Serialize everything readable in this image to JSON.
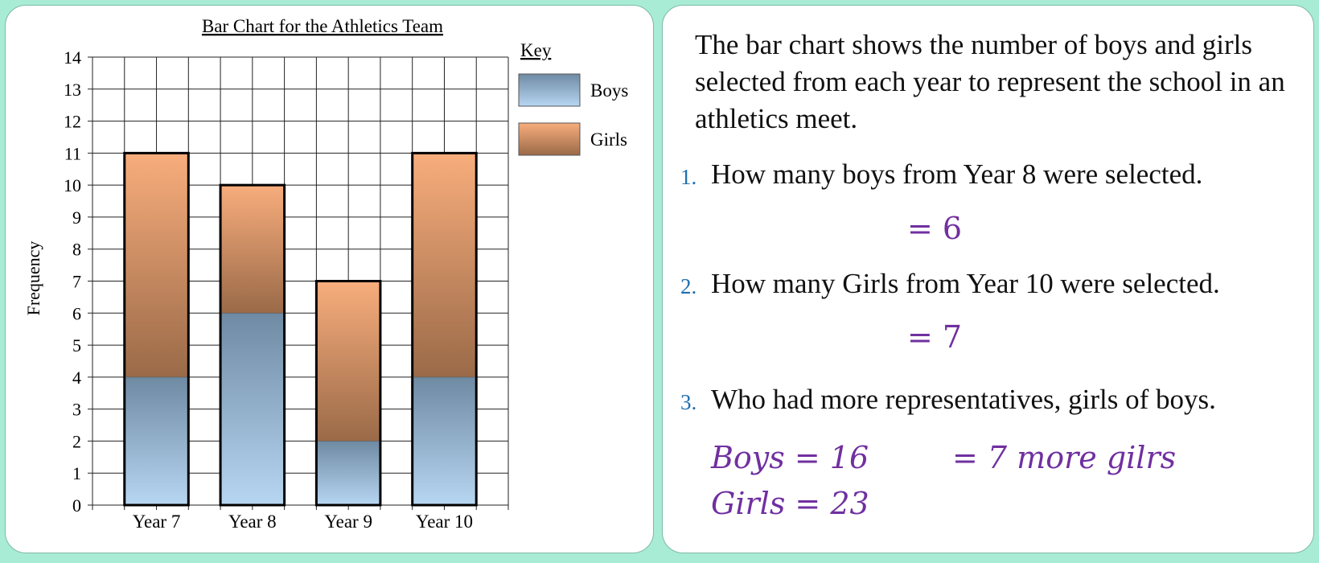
{
  "chart_data": {
    "type": "bar",
    "stacked": true,
    "title": "Bar Chart for the Athletics Team",
    "xlabel": "",
    "ylabel": "Frequency",
    "ylim": [
      0,
      14
    ],
    "yticks": [
      "0",
      "1",
      "2",
      "3",
      "4",
      "5",
      "6",
      "7",
      "8",
      "9",
      "10",
      "11",
      "12",
      "13",
      "14"
    ],
    "grid": true,
    "categories": [
      "Year 7",
      "Year 8",
      "Year 9",
      "Year 10"
    ],
    "series": [
      {
        "name": "Boys",
        "values": [
          4,
          6,
          2,
          4
        ],
        "color_top": "#6f8aa3",
        "color_bottom": "#b7d6f2"
      },
      {
        "name": "Girls",
        "values": [
          7,
          4,
          5,
          7
        ],
        "color_top": "#f8ad7c",
        "color_bottom": "#9a6a48"
      }
    ],
    "legend": {
      "title": "Key",
      "position": "right"
    }
  },
  "text": {
    "intro": "The bar chart shows the number of boys and girls selected from each year to represent the school in an athletics meet.",
    "questions": [
      {
        "num": "1.",
        "text": "How many boys from Year 8 were selected."
      },
      {
        "num": "2.",
        "text": "How many Girls from Year 10 were selected."
      },
      {
        "num": "3.",
        "text": "Who had more representatives, girls of boys."
      }
    ],
    "answers": {
      "q1": "= 6",
      "q2": "= 7",
      "q3_boys": "Boys = 16",
      "q3_girls": "Girls = 23",
      "q3_result": "= 7 more gilrs"
    }
  }
}
